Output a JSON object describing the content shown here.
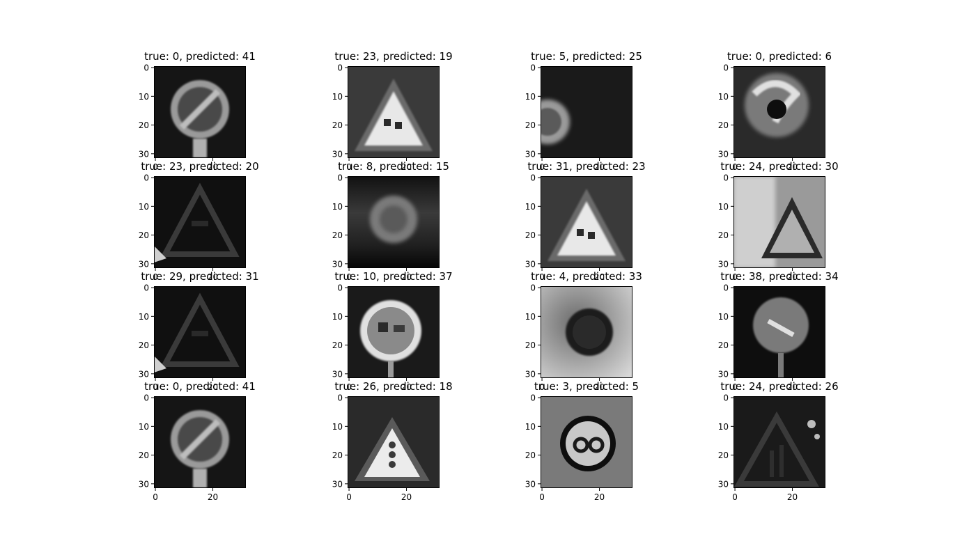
{
  "chart_data": [
    {
      "type": "image",
      "title": "true: 0, predicted: 41",
      "true": 0,
      "predicted": 41,
      "subject": "prohibition-end-sign",
      "xticks": [
        "0",
        "20"
      ],
      "yticks": [
        "0",
        "10",
        "20",
        "30"
      ]
    },
    {
      "type": "image",
      "title": "true: 23, predicted: 19",
      "true": 23,
      "predicted": 19,
      "subject": "warning-triangle",
      "xticks": [
        "0",
        "20"
      ],
      "yticks": [
        "0",
        "10",
        "20",
        "30"
      ]
    },
    {
      "type": "image",
      "title": "true: 5, predicted: 25",
      "true": 5,
      "predicted": 25,
      "subject": "dark-partial-circle",
      "xticks": [
        "0",
        "20"
      ],
      "yticks": [
        "0",
        "10",
        "20",
        "30"
      ]
    },
    {
      "type": "image",
      "title": "true: 0, predicted: 6",
      "true": 0,
      "predicted": 6,
      "subject": "blurred-circle-sign",
      "xticks": [
        "0",
        "20"
      ],
      "yticks": [
        "0",
        "10",
        "20",
        "30"
      ]
    },
    {
      "type": "image",
      "title": "true: 23, predicted: 20",
      "true": 23,
      "predicted": 20,
      "subject": "dark-triangle",
      "xticks": [
        "0",
        "20"
      ],
      "yticks": [
        "0",
        "10",
        "20",
        "30"
      ]
    },
    {
      "type": "image",
      "title": "true: 8, predicted: 15",
      "true": 8,
      "predicted": 15,
      "subject": "blurred-round-sign",
      "xticks": [
        "0",
        "20"
      ],
      "yticks": [
        "0",
        "10",
        "20",
        "30"
      ]
    },
    {
      "type": "image",
      "title": "true: 31, predicted: 23",
      "true": 31,
      "predicted": 23,
      "subject": "warning-triangle",
      "xticks": [
        "0",
        "20"
      ],
      "yticks": [
        "0",
        "10",
        "20",
        "30"
      ]
    },
    {
      "type": "image",
      "title": "true: 24, predicted: 30",
      "true": 24,
      "predicted": 30,
      "subject": "bright-triangle",
      "xticks": [
        "0",
        "20"
      ],
      "yticks": [
        "0",
        "10",
        "20",
        "30"
      ]
    },
    {
      "type": "image",
      "title": "true: 29, predicted: 31",
      "true": 29,
      "predicted": 31,
      "subject": "dark-triangle",
      "xticks": [
        "0",
        "20"
      ],
      "yticks": [
        "0",
        "10",
        "20",
        "30"
      ]
    },
    {
      "type": "image",
      "title": "true: 10, predicted: 37",
      "true": 10,
      "predicted": 37,
      "subject": "no-overtaking-circle",
      "xticks": [
        "0",
        "20"
      ],
      "yticks": [
        "0",
        "10",
        "20",
        "30"
      ]
    },
    {
      "type": "image",
      "title": "true: 4, predicted: 33",
      "true": 4,
      "predicted": 33,
      "subject": "dark-circle-bright-bg",
      "xticks": [
        "0",
        "20"
      ],
      "yticks": [
        "0",
        "10",
        "20",
        "30"
      ]
    },
    {
      "type": "image",
      "title": "true: 38, predicted: 34",
      "true": 38,
      "predicted": 34,
      "subject": "round-sign-with-arrow",
      "xticks": [
        "0",
        "20"
      ],
      "yticks": [
        "0",
        "10",
        "20",
        "30"
      ]
    },
    {
      "type": "image",
      "title": "true: 0, predicted: 41",
      "true": 0,
      "predicted": 41,
      "subject": "prohibition-end-sign",
      "xticks": [
        "0",
        "20"
      ],
      "yticks": [
        "0",
        "10",
        "20",
        "30"
      ]
    },
    {
      "type": "image",
      "title": "true: 26, predicted: 18",
      "true": 26,
      "predicted": 18,
      "subject": "traffic-light-triangle",
      "xticks": [
        "0",
        "20"
      ],
      "yticks": [
        "0",
        "10",
        "20",
        "30"
      ]
    },
    {
      "type": "image",
      "title": "true: 3, predicted: 5",
      "true": 3,
      "predicted": 5,
      "subject": "speed-limit-60",
      "xticks": [
        "0",
        "20"
      ],
      "yticks": [
        "0",
        "10",
        "20",
        "30"
      ]
    },
    {
      "type": "image",
      "title": "true: 24, predicted: 26",
      "true": 24,
      "predicted": 26,
      "subject": "road-narrows-triangle",
      "xticks": [
        "0",
        "20"
      ],
      "yticks": [
        "0",
        "10",
        "20",
        "30"
      ]
    }
  ]
}
